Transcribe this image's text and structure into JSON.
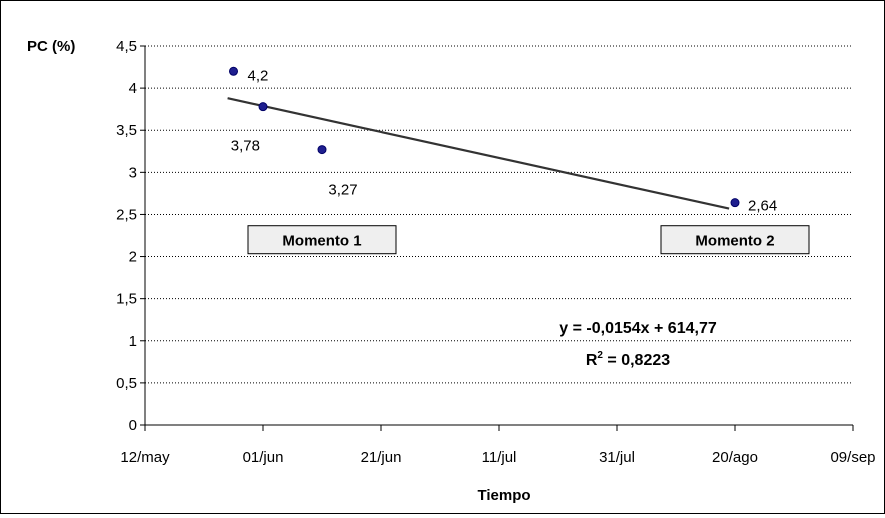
{
  "chart_data": {
    "type": "scatter",
    "title": "",
    "xlabel": "Tiempo",
    "ylabel": "PC (%)",
    "x_tick_labels": [
      "12/may",
      "01/jun",
      "21/jun",
      "11/jul",
      "31/jul",
      "20/ago",
      "09/sep"
    ],
    "x_ticks_day_of_year": [
      132,
      152,
      172,
      192,
      212,
      232,
      252
    ],
    "xlim": [
      132,
      252
    ],
    "ylim": [
      0,
      4.5
    ],
    "y_ticks": [
      {
        "value": 0,
        "label": "0"
      },
      {
        "value": 0.5,
        "label": "0,5"
      },
      {
        "value": 1,
        "label": "1"
      },
      {
        "value": 1.5,
        "label": "1,5"
      },
      {
        "value": 2,
        "label": "2"
      },
      {
        "value": 2.5,
        "label": "2,5"
      },
      {
        "value": 3,
        "label": "3"
      },
      {
        "value": 3.5,
        "label": "3,5"
      },
      {
        "value": 4,
        "label": "4"
      },
      {
        "value": 4.5,
        "label": "4,5"
      }
    ],
    "grid": {
      "horizontal": true,
      "vertical": false
    },
    "points": [
      {
        "date": "2010-05-27",
        "x": 147,
        "y": 4.2,
        "label": "4,2"
      },
      {
        "date": "2010-06-01",
        "x": 152,
        "y": 3.78,
        "label": "3,78"
      },
      {
        "date": "2010-06-11",
        "x": 162,
        "y": 3.27,
        "label": "3,27"
      },
      {
        "date": "2010-08-20",
        "x": 232,
        "y": 2.64,
        "label": "2,64"
      }
    ],
    "trendline": {
      "type": "linear",
      "x_range": [
        146,
        231
      ],
      "y_range": [
        3.88,
        2.57
      ],
      "equation": "y = -0,0154x + 614,77",
      "r2_prefix": "R",
      "r2_superscript": "2",
      "r2_value": " = 0,8223"
    },
    "annotations": [
      {
        "text": "Momento 1",
        "anchor_x": 162,
        "anchor_y": 2.2
      },
      {
        "text": "Momento 2",
        "anchor_x": 232,
        "anchor_y": 2.2
      }
    ],
    "colors": {
      "point": "#1f1f8f",
      "point_stroke": "#000066",
      "trendline": "#333333",
      "grid": "#000000",
      "annotation_fill": "#efefef"
    }
  }
}
